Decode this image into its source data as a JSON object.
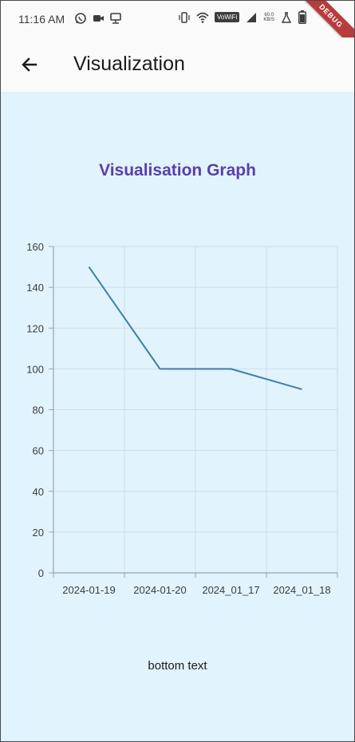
{
  "status_bar": {
    "time": "11:16 AM",
    "network_badge": "VoWiFi",
    "speed_value": "60.0",
    "speed_unit": "KB/S",
    "debug_label": "DEBUG"
  },
  "app_bar": {
    "title": "Visualization",
    "back_icon": "arrow-left-icon"
  },
  "graph": {
    "title": "Visualisation Graph"
  },
  "chart_data": {
    "type": "line",
    "categories": [
      "2024-01-19",
      "2024-01-20",
      "2024_01_17",
      "2024_01_18"
    ],
    "values": [
      150,
      100,
      100,
      90
    ],
    "ylim": [
      0,
      160
    ],
    "yticks": [
      0,
      20,
      40,
      60,
      80,
      100,
      120,
      140,
      160
    ],
    "grid": true,
    "line_color": "#3f7fa5"
  },
  "footer": {
    "text": "bottom text"
  }
}
